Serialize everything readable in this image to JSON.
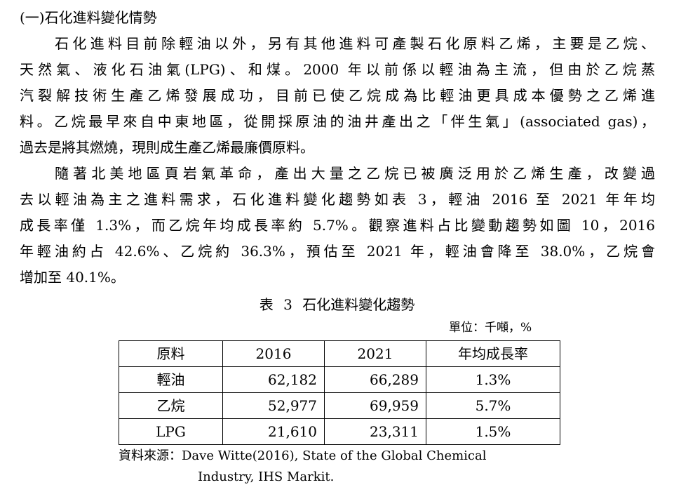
{
  "section_heading": "(一)石化進料變化情勢",
  "paragraph1": [
    "石化進料目前除輕油以外，另有其他進料可產製石化原料乙烯，主要是乙烷、",
    "天然氣、液化石油氣(LPG)、和煤。2000 年以前係以輕油為主流，但由於乙烷蒸",
    "汽裂解技術生產乙烯發展成功，目前已使乙烷成為比輕油更具成本優勢之乙烯進",
    "料。乙烷最早來自中東地區，從開採原油的油井產出之「伴生氣」(associated gas)，",
    "過去是將其燃燒，現則成生產乙烯最廉價原料。"
  ],
  "paragraph2": [
    "隨著北美地區頁岩氣革命，產出大量之乙烷已被廣泛用於乙烯生產，改變過",
    "去以輕油為主之進料需求，石化進料變化趨勢如表 3，輕油 2016 至 2021 年年均",
    "成長率僅 1.3%，而乙烷年均成長率約 5.7%。觀察進料占比變動趨勢如圖 10，2016",
    "年輕油約占 42.6%、乙烷約 36.3%，預估至 2021 年，輕油會降至 38.0%，乙烷會",
    "增加至 40.1%。"
  ],
  "table": {
    "title": "表 3 石化進料變化趨勢",
    "unit": "單位：千噸，%",
    "headers": [
      "原料",
      "2016",
      "2021",
      "年均成長率"
    ],
    "rows": [
      [
        "輕油",
        "62,182",
        "66,289",
        "1.3%"
      ],
      [
        "乙烷",
        "52,977",
        "69,959",
        "5.7%"
      ],
      [
        "LPG",
        "21,610",
        "23,311",
        "1.5%"
      ]
    ],
    "source_line1": "資料來源：Dave Witte(2016), State of the Global Chemical",
    "source_line2": "Industry, IHS Markit."
  }
}
